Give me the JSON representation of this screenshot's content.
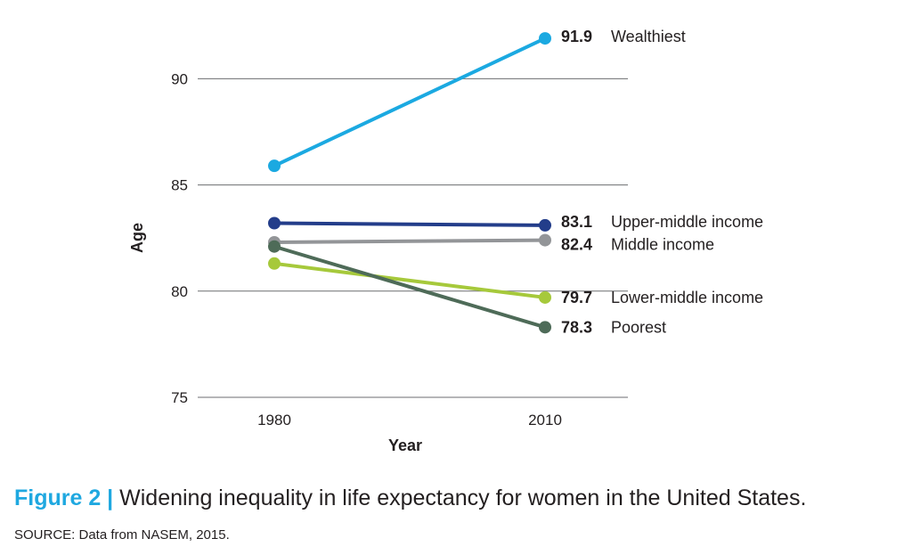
{
  "chart_data": {
    "type": "line",
    "x": [
      "1980",
      "2010"
    ],
    "ylabel": "Age",
    "xlabel": "Year",
    "ylim": [
      75,
      91.9
    ],
    "yticks": [
      75,
      80,
      85,
      90
    ],
    "grid": "horizontal",
    "series": [
      {
        "name": "Wealthiest",
        "values": [
          85.9,
          91.9
        ],
        "end_label": "91.9",
        "color": "#1ba9e1"
      },
      {
        "name": "Upper-middle income",
        "values": [
          83.2,
          83.1
        ],
        "end_label": "83.1",
        "color": "#233d8a"
      },
      {
        "name": "Middle income",
        "values": [
          82.3,
          82.4
        ],
        "end_label": "82.4",
        "color": "#939598"
      },
      {
        "name": "Lower-middle income",
        "values": [
          81.3,
          79.7
        ],
        "end_label": "79.7",
        "color": "#a6c93b"
      },
      {
        "name": "Poorest",
        "values": [
          82.1,
          78.3
        ],
        "end_label": "78.3",
        "color": "#4e6b58"
      }
    ]
  },
  "caption": {
    "figure_label": "Figure 2 |",
    "text": "Widening inequality in life expectancy for women in the United States.",
    "source": "SOURCE: Data from NASEM, 2015."
  }
}
